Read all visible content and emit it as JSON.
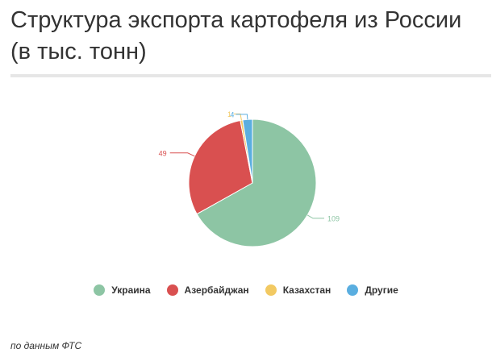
{
  "title": "Структура экспорта картофеля из России (в тыс. тонн)",
  "source": "по данным ФТС",
  "chart_data": {
    "type": "pie",
    "title": "Структура экспорта картофеля из России (в тыс. тонн)",
    "labels": [
      "Украина",
      "Азербайджан",
      "Казахстан",
      "Другие"
    ],
    "values": [
      109,
      49,
      1,
      4
    ],
    "colors": [
      "#8dc5a4",
      "#d95050",
      "#f2c962",
      "#5aaee0"
    ],
    "legend_position": "bottom"
  }
}
